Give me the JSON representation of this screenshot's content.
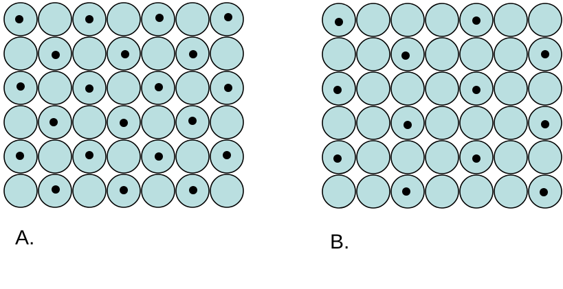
{
  "colors": {
    "circle_fill": "#badfe0",
    "circle_stroke": "#000000",
    "dot": "#000000"
  },
  "panels": [
    {
      "label": "A.",
      "rows": 6,
      "cols": 7,
      "dots": [
        [
          0,
          0
        ],
        [
          0,
          2
        ],
        [
          0,
          4
        ],
        [
          0,
          6
        ],
        [
          1,
          1
        ],
        [
          1,
          3
        ],
        [
          1,
          5
        ],
        [
          2,
          0
        ],
        [
          2,
          2
        ],
        [
          2,
          4
        ],
        [
          2,
          6
        ],
        [
          3,
          1
        ],
        [
          3,
          3
        ],
        [
          3,
          5
        ],
        [
          4,
          0
        ],
        [
          4,
          2
        ],
        [
          4,
          4
        ],
        [
          4,
          6
        ],
        [
          5,
          1
        ],
        [
          5,
          3
        ],
        [
          5,
          5
        ]
      ]
    },
    {
      "label": "B.",
      "rows": 6,
      "cols": 7,
      "dots": [
        [
          0,
          0
        ],
        [
          0,
          4
        ],
        [
          1,
          2
        ],
        [
          1,
          6
        ],
        [
          2,
          0
        ],
        [
          2,
          4
        ],
        [
          3,
          2
        ],
        [
          3,
          6
        ],
        [
          4,
          0
        ],
        [
          4,
          4
        ],
        [
          5,
          2
        ],
        [
          5,
          6
        ]
      ]
    }
  ]
}
